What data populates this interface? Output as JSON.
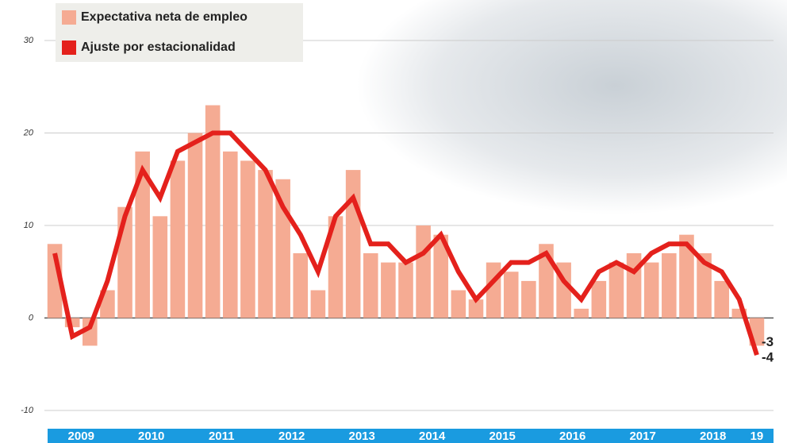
{
  "chart_data": {
    "type": "bar_line",
    "categories": [
      null,
      null,
      null,
      null,
      null,
      null,
      null,
      null,
      null,
      null,
      null,
      null,
      null,
      null,
      null,
      null,
      null,
      null,
      null,
      null,
      null,
      null,
      null,
      null,
      null,
      null,
      null,
      null,
      null,
      null,
      null,
      null,
      null,
      null,
      null,
      null,
      null,
      null,
      null,
      null,
      null
    ],
    "year_labels": [
      "2009",
      "2010",
      "2011",
      "2012",
      "2013",
      "2014",
      "2015",
      "2016",
      "2017",
      "2018",
      "19"
    ],
    "series": [
      {
        "name": "Expectativa neta de empleo",
        "type": "bar",
        "color": "#f5ab93",
        "values": [
          8,
          -1,
          -3,
          3,
          12,
          18,
          11,
          17,
          20,
          23,
          18,
          17,
          16,
          15,
          7,
          3,
          11,
          16,
          7,
          6,
          6,
          10,
          9,
          3,
          2,
          6,
          5,
          4,
          8,
          6,
          1,
          4,
          6,
          7,
          6,
          7,
          9,
          7,
          4,
          1,
          -3
        ]
      },
      {
        "name": "Ajuste por estacionalidad",
        "type": "line",
        "color": "#e4211c",
        "values": [
          7,
          -2,
          -1,
          4,
          11,
          16,
          13,
          18,
          19,
          20,
          20,
          18,
          16,
          12,
          9,
          5,
          11,
          13,
          8,
          8,
          6,
          7,
          9,
          5,
          2,
          4,
          6,
          6,
          7,
          4,
          2,
          5,
          6,
          5,
          7,
          8,
          8,
          6,
          5,
          2,
          -4
        ]
      }
    ],
    "ylim": [
      -10,
      30
    ],
    "yticks": [
      -10,
      0,
      10,
      20,
      30
    ],
    "grid": true
  }
}
